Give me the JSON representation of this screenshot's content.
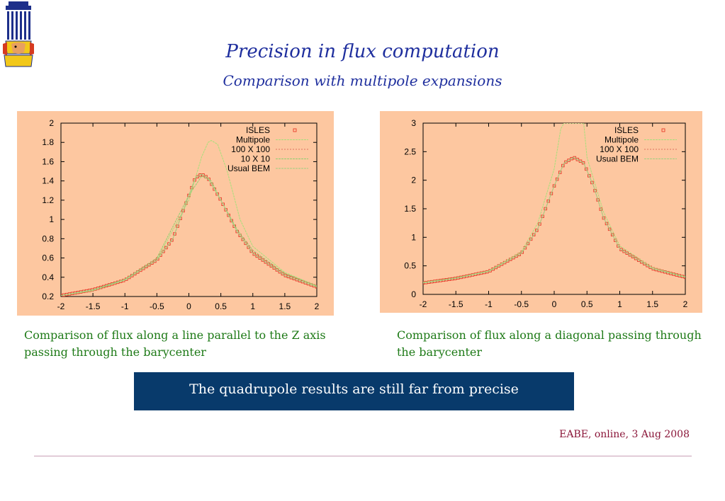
{
  "slide": {
    "title": "Precision in flux computation",
    "subtitle": "Comparison with multipole expansions",
    "banner": "The quadrupole results are still far from precise",
    "footer": "EABE, online, 3 Aug 2008"
  },
  "colors": {
    "title": "#1f2f9e",
    "caption": "#1e7a17",
    "banner_bg": "#083a6b",
    "panel_bg": "#fdc7a0",
    "isles": "#e83a2a",
    "multipole": "#a6e07a",
    "hundred": "#e07060",
    "ten": "#8fd070",
    "usual_bem": "#a0d080"
  },
  "logo": {
    "icon": "pharaoh-logo-icon"
  },
  "chart_data": [
    {
      "type": "line",
      "caption": "Comparison of flux along a line parallel to the Z axis passing through the barycenter",
      "xlim": [
        -2,
        2
      ],
      "ylim": [
        0.2,
        2
      ],
      "xticks": [
        "-2",
        "-1.5",
        "-1",
        "-0.5",
        "0",
        "0.5",
        "1",
        "1.5",
        "2"
      ],
      "yticks": [
        "0.2",
        "0.4",
        "0.6",
        "0.8",
        "1",
        "1.2",
        "1.4",
        "1.6",
        "1.8",
        "2"
      ],
      "legend_position": "top-right",
      "series": [
        {
          "name": "ISLES",
          "style": "points",
          "x": [
            -2,
            -1.5,
            -1,
            -0.5,
            -0.25,
            0,
            0.1,
            0.2,
            0.3,
            0.5,
            0.75,
            1,
            1.5,
            2
          ],
          "y": [
            0.21,
            0.27,
            0.37,
            0.58,
            0.8,
            1.25,
            1.43,
            1.47,
            1.43,
            1.2,
            0.88,
            0.65,
            0.42,
            0.3
          ]
        },
        {
          "name": "Multipole",
          "style": "line",
          "x": [
            -2,
            -1.5,
            -1,
            -0.5,
            0,
            0.2,
            0.3,
            0.35,
            0.45,
            0.6,
            0.8,
            1,
            1.5,
            2
          ],
          "y": [
            0.21,
            0.26,
            0.37,
            0.58,
            1.2,
            1.65,
            1.8,
            1.82,
            1.78,
            1.5,
            1.0,
            0.72,
            0.45,
            0.31
          ]
        },
        {
          "name": "100 X 100",
          "style": "line",
          "x": [
            -2,
            -1.5,
            -1,
            -0.5,
            -0.25,
            0,
            0.1,
            0.2,
            0.3,
            0.5,
            0.75,
            1,
            1.5,
            2
          ],
          "y": [
            0.21,
            0.27,
            0.37,
            0.58,
            0.8,
            1.25,
            1.43,
            1.47,
            1.43,
            1.2,
            0.88,
            0.65,
            0.42,
            0.3
          ]
        },
        {
          "name": "10 X 10",
          "style": "line",
          "x": [
            -2,
            -1.5,
            -1,
            -0.5,
            0,
            0.2,
            0.35,
            0.5,
            0.75,
            1,
            1.5,
            2
          ],
          "y": [
            0.21,
            0.27,
            0.38,
            0.6,
            1.25,
            1.45,
            1.4,
            1.2,
            0.9,
            0.68,
            0.44,
            0.31
          ]
        },
        {
          "name": "Usual BEM",
          "style": "line",
          "x": [
            -2,
            -1.5,
            -1,
            -0.5,
            -0.25,
            0,
            0.1,
            0.2,
            0.3,
            0.5,
            0.75,
            1,
            1.5,
            2
          ],
          "y": [
            0.21,
            0.27,
            0.37,
            0.58,
            0.8,
            1.25,
            1.43,
            1.47,
            1.43,
            1.2,
            0.88,
            0.65,
            0.42,
            0.3
          ]
        }
      ]
    },
    {
      "type": "line",
      "caption": "Comparison of flux along a diagonal passing through the barycenter",
      "xlim": [
        -2,
        2
      ],
      "ylim": [
        0,
        3
      ],
      "xticks": [
        "-2",
        "-1.5",
        "-1",
        "-0.5",
        "0",
        "0.5",
        "1",
        "1.5",
        "2"
      ],
      "yticks": [
        "0",
        "0.5",
        "1",
        "1.5",
        "2",
        "2.5",
        "3"
      ],
      "legend_position": "top-right",
      "series": [
        {
          "name": "ISLES",
          "style": "points",
          "x": [
            -2,
            -1.5,
            -1,
            -0.5,
            -0.25,
            0,
            0.15,
            0.3,
            0.45,
            0.6,
            0.75,
            1,
            1.5,
            2
          ],
          "y": [
            0.2,
            0.28,
            0.4,
            0.72,
            1.15,
            1.9,
            2.3,
            2.4,
            2.3,
            1.9,
            1.35,
            0.8,
            0.45,
            0.3
          ]
        },
        {
          "name": "Multipole",
          "style": "line",
          "x": [
            -2,
            -1.5,
            -1,
            -0.5,
            -0.25,
            0,
            0.1,
            0.15,
            0.45,
            0.5,
            0.75,
            1,
            1.5,
            2
          ],
          "y": [
            0.21,
            0.29,
            0.41,
            0.75,
            1.25,
            2.2,
            2.9,
            3.0,
            3.0,
            2.4,
            1.45,
            0.85,
            0.47,
            0.31
          ]
        },
        {
          "name": "100 X 100",
          "style": "line",
          "x": [
            -2,
            -1.5,
            -1,
            -0.5,
            -0.25,
            0,
            0.15,
            0.3,
            0.45,
            0.6,
            0.75,
            1,
            1.5,
            2
          ],
          "y": [
            0.2,
            0.28,
            0.4,
            0.72,
            1.15,
            1.9,
            2.3,
            2.4,
            2.3,
            1.9,
            1.35,
            0.8,
            0.45,
            0.3
          ]
        },
        {
          "name": "Usual BEM",
          "style": "line",
          "x": [
            -2,
            -1.5,
            -1,
            -0.5,
            -0.25,
            0,
            0.15,
            0.3,
            0.45,
            0.6,
            0.75,
            1,
            1.5,
            2
          ],
          "y": [
            0.2,
            0.28,
            0.4,
            0.72,
            1.15,
            1.9,
            2.3,
            2.4,
            2.3,
            1.9,
            1.35,
            0.8,
            0.45,
            0.3
          ]
        }
      ]
    }
  ]
}
